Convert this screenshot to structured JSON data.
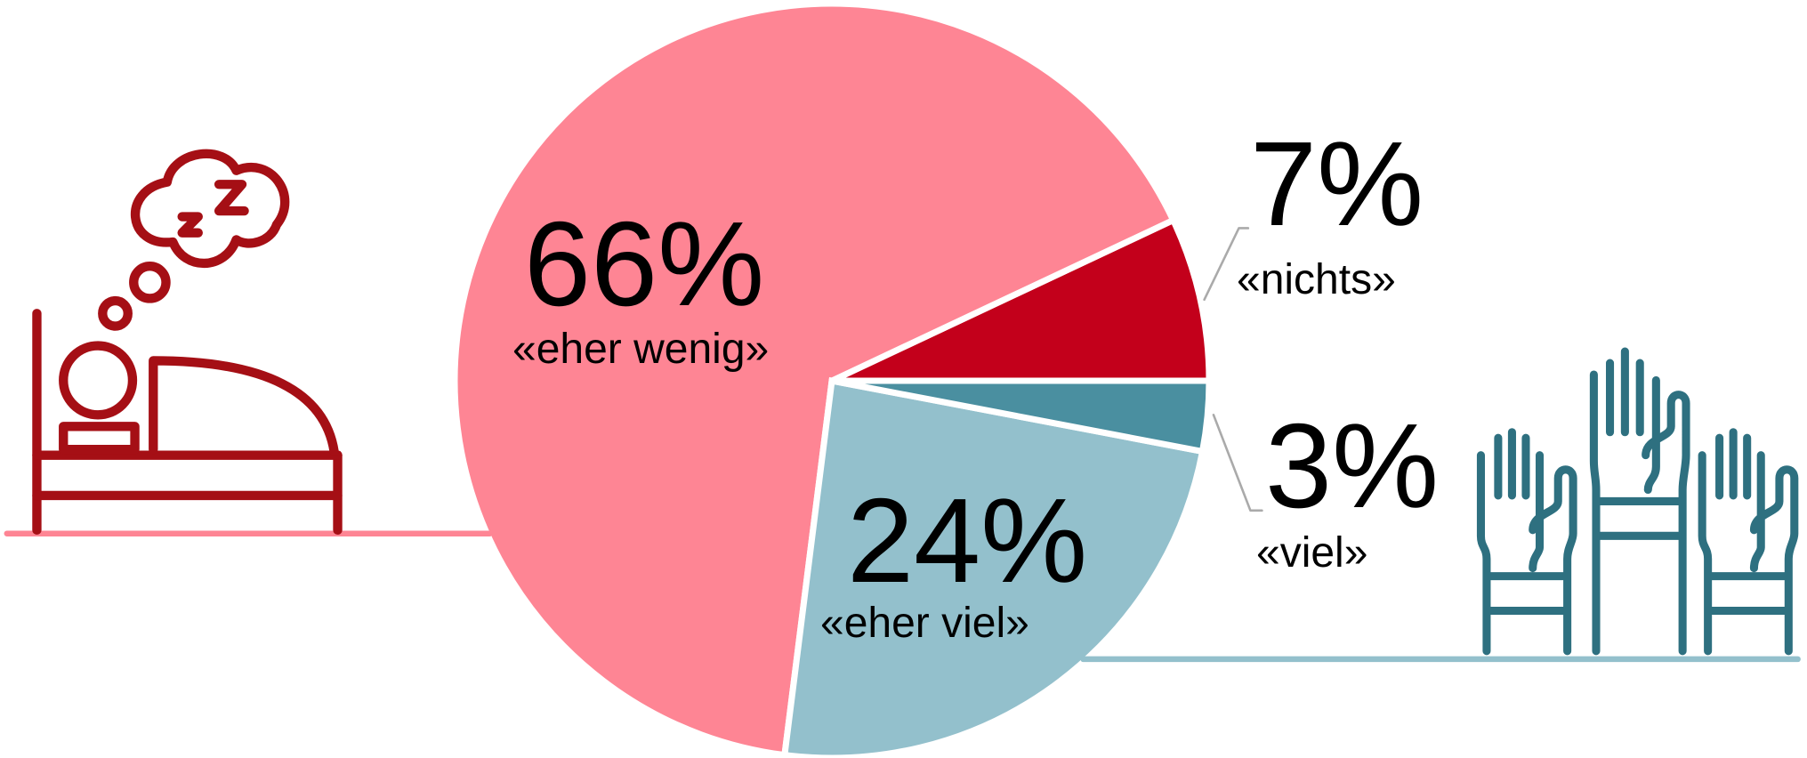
{
  "chart_data": {
    "type": "pie",
    "categories": [
      "«nichts»",
      "«eher wenig»",
      "«eher viel»",
      "«viel»"
    ],
    "values": [
      7,
      66,
      24,
      3
    ],
    "value_labels": [
      "7%",
      "66%",
      "24%",
      "3%"
    ],
    "colors": [
      "#c3001b",
      "#fe8594",
      "#93c0cc",
      "#4a8fa0"
    ]
  }
}
